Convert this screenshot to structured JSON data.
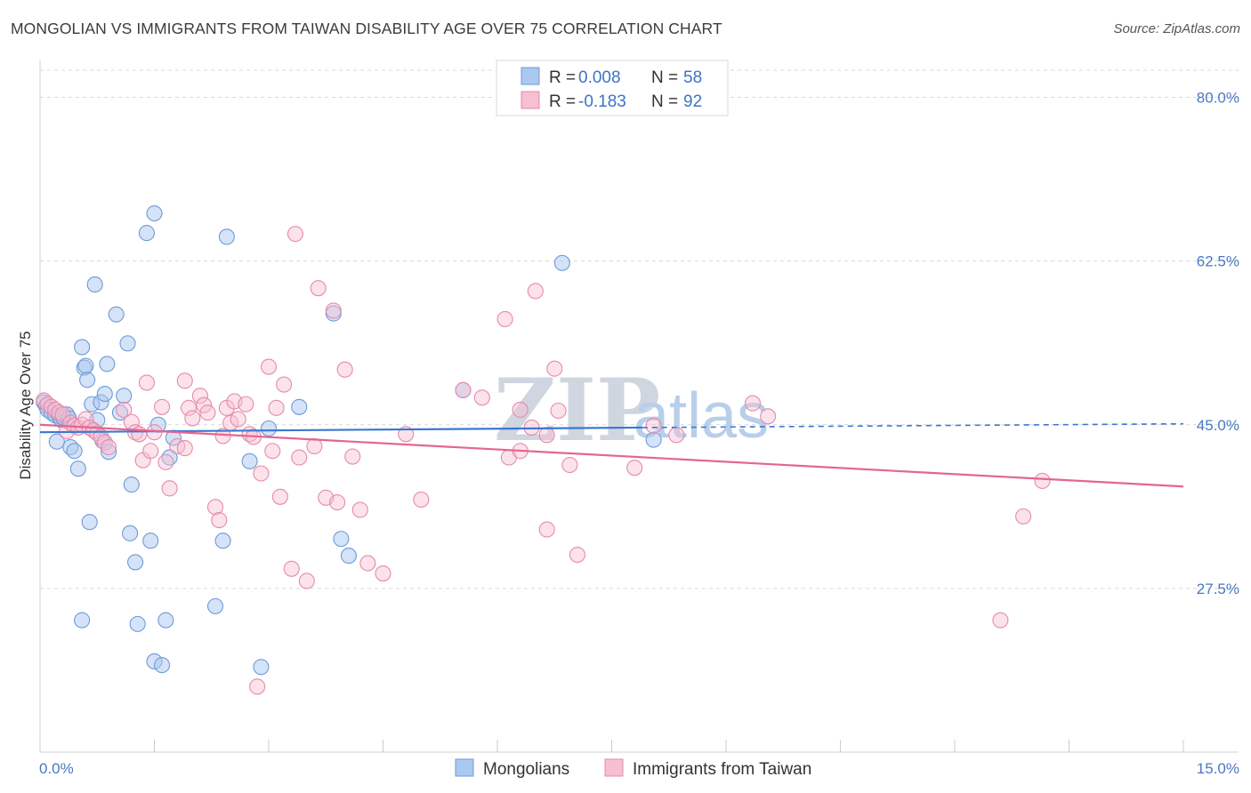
{
  "title": "MONGOLIAN VS IMMIGRANTS FROM TAIWAN DISABILITY AGE OVER 75 CORRELATION CHART",
  "source": "Source: ZipAtlas.com",
  "watermark": {
    "zip": "ZIP",
    "atlas": "atlas"
  },
  "colors": {
    "mongolian_fill": "#aac8f0",
    "mongolian_stroke": "#6f9ad8",
    "mongolian_line": "#3a78d0",
    "taiwan_fill": "#f7bfd2",
    "taiwan_stroke": "#e68aab",
    "taiwan_line": "#e36591",
    "grid": "#d9d9d9",
    "axis_text": "#4a78c2"
  },
  "legend": {
    "rows": [
      {
        "r_label": "R = ",
        "r_value": "0.008",
        "n_label": "N = ",
        "n_value": "58"
      },
      {
        "r_label": "R = ",
        "r_value": "-0.183",
        "n_label": "N = ",
        "n_value": "92"
      }
    ]
  },
  "bottom_legend": {
    "mongolians": "Mongolians",
    "taiwan": "Immigrants from Taiwan"
  },
  "chart_data": {
    "type": "scatter",
    "title": "MONGOLIAN VS IMMIGRANTS FROM TAIWAN DISABILITY AGE OVER 75 CORRELATION CHART",
    "xlabel": "",
    "ylabel": "Disability Age Over 75",
    "xlim": [
      0,
      15
    ],
    "ylim": [
      10,
      83
    ],
    "x_tick_labels": [
      "0.0%",
      "15.0%"
    ],
    "y_ticks": [
      27.5,
      45.0,
      62.5,
      80.0
    ],
    "y_tick_labels": [
      "27.5%",
      "45.0%",
      "62.5%",
      "80.0%"
    ],
    "grid": true,
    "series": [
      {
        "name": "Mongolians",
        "trend": {
          "x": [
            0.0,
            7.9
          ],
          "y": [
            44.2,
            44.7
          ],
          "dashed_to": [
            15.0,
            45.1
          ]
        },
        "points": [
          [
            0.05,
            47.4
          ],
          [
            0.08,
            47.0
          ],
          [
            0.1,
            46.6
          ],
          [
            0.15,
            46.3
          ],
          [
            0.2,
            46.0
          ],
          [
            0.22,
            43.2
          ],
          [
            0.25,
            45.9
          ],
          [
            0.28,
            45.5
          ],
          [
            0.3,
            45.8
          ],
          [
            0.35,
            46.1
          ],
          [
            0.38,
            45.7
          ],
          [
            0.4,
            42.6
          ],
          [
            0.45,
            42.2
          ],
          [
            0.5,
            40.3
          ],
          [
            0.55,
            53.3
          ],
          [
            0.58,
            51.1
          ],
          [
            0.6,
            51.3
          ],
          [
            0.62,
            49.8
          ],
          [
            0.68,
            47.2
          ],
          [
            0.72,
            60.0
          ],
          [
            0.75,
            45.5
          ],
          [
            0.8,
            47.4
          ],
          [
            0.82,
            43.3
          ],
          [
            0.85,
            48.3
          ],
          [
            0.88,
            51.5
          ],
          [
            0.9,
            42.1
          ],
          [
            1.0,
            56.8
          ],
          [
            1.05,
            46.3
          ],
          [
            1.1,
            48.1
          ],
          [
            1.15,
            53.7
          ],
          [
            1.18,
            33.4
          ],
          [
            1.2,
            38.6
          ],
          [
            1.25,
            30.3
          ],
          [
            1.28,
            23.7
          ],
          [
            1.4,
            65.5
          ],
          [
            1.45,
            32.6
          ],
          [
            1.5,
            67.6
          ],
          [
            1.5,
            19.7
          ],
          [
            1.55,
            45.0
          ],
          [
            1.6,
            19.3
          ],
          [
            1.65,
            24.1
          ],
          [
            1.7,
            41.5
          ],
          [
            1.75,
            43.6
          ],
          [
            2.3,
            25.6
          ],
          [
            2.4,
            32.6
          ],
          [
            2.45,
            65.1
          ],
          [
            2.75,
            41.1
          ],
          [
            2.9,
            19.1
          ],
          [
            3.0,
            44.6
          ],
          [
            3.4,
            46.9
          ],
          [
            3.85,
            56.9
          ],
          [
            3.95,
            32.8
          ],
          [
            4.05,
            31.0
          ],
          [
            5.55,
            48.7
          ],
          [
            6.85,
            62.3
          ],
          [
            8.05,
            43.4
          ],
          [
            0.55,
            24.1
          ],
          [
            0.65,
            34.6
          ]
        ]
      },
      {
        "name": "Immigrants from Taiwan",
        "trend": {
          "x": [
            0.0,
            15.0
          ],
          "y": [
            45.0,
            38.4
          ]
        },
        "points": [
          [
            0.05,
            47.6
          ],
          [
            0.1,
            47.2
          ],
          [
            0.15,
            46.9
          ],
          [
            0.2,
            46.6
          ],
          [
            0.25,
            46.3
          ],
          [
            0.3,
            46.1
          ],
          [
            0.35,
            44.3
          ],
          [
            0.4,
            45.2
          ],
          [
            0.45,
            44.9
          ],
          [
            0.5,
            44.7
          ],
          [
            0.55,
            45.0
          ],
          [
            0.6,
            45.6
          ],
          [
            0.65,
            44.7
          ],
          [
            0.7,
            44.4
          ],
          [
            0.75,
            44.1
          ],
          [
            0.8,
            43.7
          ],
          [
            0.85,
            43.1
          ],
          [
            0.9,
            42.6
          ],
          [
            1.1,
            46.6
          ],
          [
            1.2,
            45.3
          ],
          [
            1.25,
            44.2
          ],
          [
            1.3,
            44.0
          ],
          [
            1.35,
            41.2
          ],
          [
            1.4,
            49.5
          ],
          [
            1.45,
            42.2
          ],
          [
            1.5,
            44.2
          ],
          [
            1.6,
            46.9
          ],
          [
            1.65,
            41.0
          ],
          [
            1.7,
            38.2
          ],
          [
            1.8,
            42.7
          ],
          [
            1.9,
            49.7
          ],
          [
            1.95,
            46.8
          ],
          [
            2.0,
            45.7
          ],
          [
            2.1,
            48.1
          ],
          [
            2.15,
            47.1
          ],
          [
            2.2,
            46.3
          ],
          [
            2.3,
            36.2
          ],
          [
            2.35,
            34.8
          ],
          [
            2.4,
            43.8
          ],
          [
            2.45,
            46.8
          ],
          [
            2.5,
            45.2
          ],
          [
            2.55,
            47.5
          ],
          [
            2.6,
            45.6
          ],
          [
            2.7,
            47.2
          ],
          [
            2.75,
            44.0
          ],
          [
            2.8,
            43.7
          ],
          [
            2.85,
            17.0
          ],
          [
            2.9,
            39.8
          ],
          [
            3.0,
            51.2
          ],
          [
            3.05,
            42.2
          ],
          [
            3.1,
            46.8
          ],
          [
            3.15,
            37.3
          ],
          [
            3.2,
            49.3
          ],
          [
            3.3,
            29.6
          ],
          [
            3.35,
            65.4
          ],
          [
            3.4,
            41.5
          ],
          [
            3.5,
            28.3
          ],
          [
            3.6,
            42.7
          ],
          [
            3.65,
            59.6
          ],
          [
            3.75,
            37.2
          ],
          [
            3.85,
            57.2
          ],
          [
            3.9,
            36.7
          ],
          [
            4.0,
            50.9
          ],
          [
            4.1,
            41.6
          ],
          [
            4.2,
            35.9
          ],
          [
            4.3,
            30.2
          ],
          [
            4.5,
            29.1
          ],
          [
            4.8,
            44.0
          ],
          [
            5.0,
            37.0
          ],
          [
            5.55,
            48.7
          ],
          [
            5.8,
            47.9
          ],
          [
            6.1,
            56.3
          ],
          [
            6.15,
            41.5
          ],
          [
            6.3,
            42.2
          ],
          [
            6.3,
            46.6
          ],
          [
            6.45,
            44.7
          ],
          [
            6.5,
            59.3
          ],
          [
            6.65,
            33.8
          ],
          [
            6.65,
            43.9
          ],
          [
            6.75,
            51.0
          ],
          [
            6.8,
            46.5
          ],
          [
            6.95,
            40.7
          ],
          [
            7.05,
            31.1
          ],
          [
            7.8,
            40.4
          ],
          [
            8.05,
            44.9
          ],
          [
            8.35,
            43.9
          ],
          [
            9.35,
            47.3
          ],
          [
            9.55,
            45.9
          ],
          [
            12.6,
            24.1
          ],
          [
            12.9,
            35.2
          ],
          [
            13.15,
            39.0
          ],
          [
            1.9,
            42.5
          ]
        ]
      }
    ]
  }
}
